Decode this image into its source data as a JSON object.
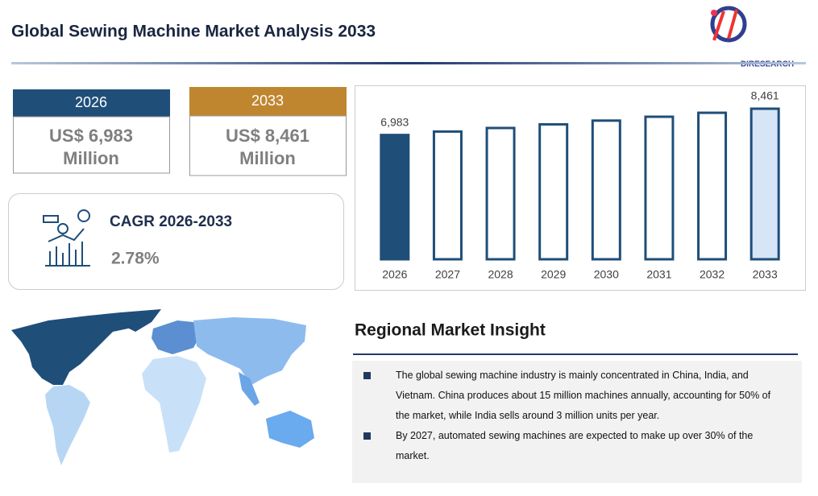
{
  "header": {
    "title": "Global Sewing Machine Market Analysis 2033",
    "logo": "DIRESEARCH"
  },
  "stats": [
    {
      "year": "2026",
      "value": "US$ 6,983",
      "unit": "Million"
    },
    {
      "year": "2033",
      "value": "US$ 8,461",
      "unit": "Million"
    }
  ],
  "cagr": {
    "label": "CAGR 2026-2033",
    "value": "2.78%"
  },
  "chart_data": {
    "type": "bar",
    "categories": [
      "2026",
      "2027",
      "2028",
      "2029",
      "2030",
      "2031",
      "2032",
      "2033"
    ],
    "values": [
      6983,
      7177,
      7377,
      7582,
      7792,
      8009,
      8232,
      8461
    ],
    "value_labels": [
      "6,983",
      null,
      null,
      null,
      null,
      null,
      null,
      "8,461"
    ],
    "colors": [
      "#1f4e79",
      "#ffffff",
      "#ffffff",
      "#ffffff",
      "#ffffff",
      "#ffffff",
      "#ffffff",
      "#d6e6f7"
    ],
    "edge_color": "#1f4e79"
  },
  "insight": {
    "title": "Regional Market Insight",
    "bullets": [
      "The global sewing machine industry is mainly concentrated in China, India, and Vietnam. China produces about 15 million machines annually, accounting for 50% of the market, while India sells around 3 million units per year.",
      "By 2027, automated sewing machines are expected to make up over 30% of the market."
    ]
  }
}
